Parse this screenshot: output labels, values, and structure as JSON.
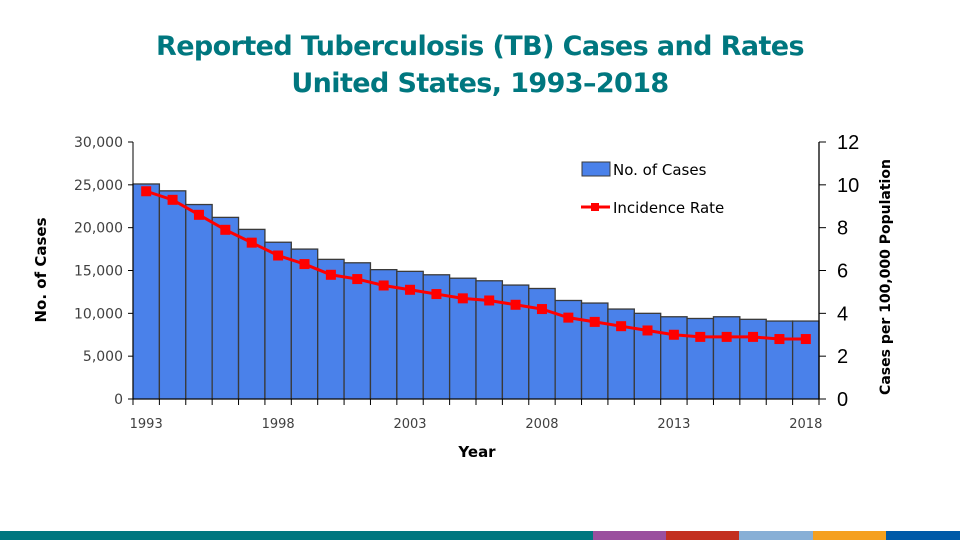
{
  "title": {
    "line1": "Reported Tuberculosis (TB) Cases and Rates",
    "line2": "United States, 1993–2018"
  },
  "colors": {
    "title": "#00777f",
    "bars": "#4a81ea",
    "bar_outline": "#3a3a3a",
    "line": "#ff0000"
  },
  "footer_bar_colors": [
    "#00777f",
    "#9a4f9e",
    "#c33020",
    "#87afd6",
    "#f5a01f",
    "#005aa8"
  ],
  "chart_data": {
    "type": "bar",
    "combo": "bar + line (dual axis)",
    "title": "Reported Tuberculosis (TB) Cases and Rates United States, 1993–2018",
    "xlabel": "Year",
    "ylabel": "No. of Cases",
    "y2label": "Cases per 100,000 Population",
    "x": [
      1993,
      1994,
      1995,
      1996,
      1997,
      1998,
      1999,
      2000,
      2001,
      2002,
      2003,
      2004,
      2005,
      2006,
      2007,
      2008,
      2009,
      2010,
      2011,
      2012,
      2013,
      2014,
      2015,
      2016,
      2017,
      2018
    ],
    "xtick_labels": [
      "1993",
      "1998",
      "2003",
      "2008",
      "2013",
      "2018"
    ],
    "ylim": [
      0,
      30000
    ],
    "yticks": [
      0,
      5000,
      10000,
      15000,
      20000,
      25000,
      30000
    ],
    "ytick_labels": [
      "0",
      "5,000",
      "10,000",
      "15,000",
      "20,000",
      "25,000",
      "30,000"
    ],
    "y2lim": [
      0,
      12
    ],
    "y2ticks": [
      0,
      2,
      4,
      6,
      8,
      10,
      12
    ],
    "y2tick_labels": [
      "0",
      "2",
      "4",
      "6",
      "8",
      "10",
      "12"
    ],
    "grid": false,
    "legend": {
      "placement": "top-right",
      "entries": [
        "No. of Cases",
        "Incidence Rate"
      ]
    },
    "series": [
      {
        "name": "No. of Cases",
        "type": "bar",
        "axis": "left",
        "values": [
          25100,
          24300,
          22700,
          21200,
          19800,
          18300,
          17500,
          16300,
          15900,
          15100,
          14900,
          14500,
          14100,
          13800,
          13300,
          12900,
          11500,
          11200,
          10500,
          10000,
          9600,
          9400,
          9600,
          9300,
          9100,
          9100
        ]
      },
      {
        "name": "Incidence Rate",
        "type": "line",
        "axis": "right",
        "values": [
          9.7,
          9.3,
          8.6,
          7.9,
          7.3,
          6.7,
          6.3,
          5.8,
          5.6,
          5.3,
          5.1,
          4.9,
          4.7,
          4.6,
          4.4,
          4.2,
          3.8,
          3.6,
          3.4,
          3.2,
          3.0,
          2.9,
          2.9,
          2.9,
          2.8,
          2.8
        ]
      }
    ]
  }
}
